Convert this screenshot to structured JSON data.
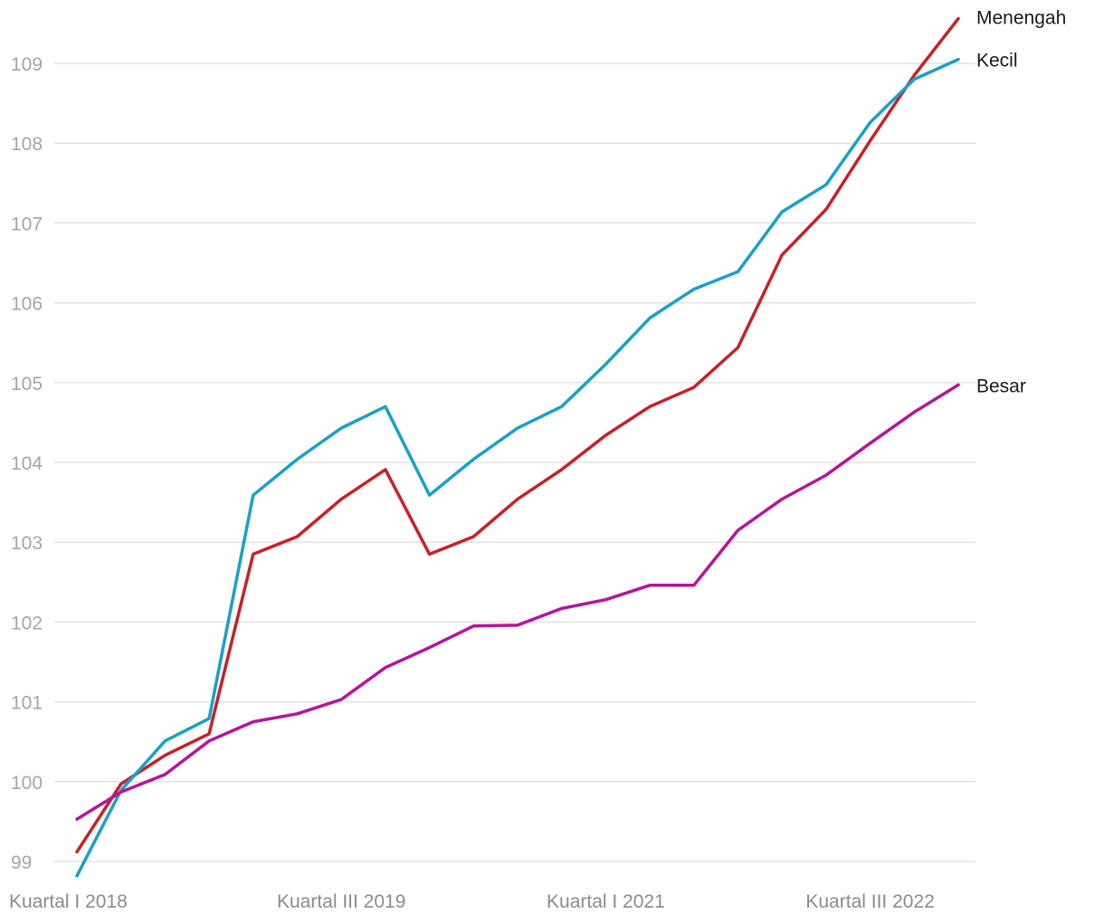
{
  "chart_data": {
    "type": "line",
    "title": "",
    "xlabel": "",
    "ylabel": "",
    "ylim": [
      98.8,
      109.6
    ],
    "yticks": [
      99,
      100,
      101,
      102,
      103,
      104,
      105,
      106,
      107,
      108,
      109
    ],
    "grid": true,
    "legend": "direct labels at line ends",
    "x": [
      "Kuartal I 2018",
      "Kuartal II 2018",
      "Kuartal III 2018",
      "Kuartal IV 2018",
      "Kuartal I 2019",
      "Kuartal II 2019",
      "Kuartal III 2019",
      "Kuartal IV 2019",
      "Kuartal I 2020",
      "Kuartal II 2020",
      "Kuartal III 2020",
      "Kuartal IV 2020",
      "Kuartal I 2021",
      "Kuartal II 2021",
      "Kuartal III 2021",
      "Kuartal IV 2021",
      "Kuartal I 2022",
      "Kuartal II 2022",
      "Kuartal III 2022",
      "Kuartal IV 2022",
      "Kuartal I 2023"
    ],
    "x_tick_labels": [
      "Kuartal I 2018",
      "Kuartal III 2019",
      "Kuartal I 2021",
      "Kuartal III 2022"
    ],
    "x_tick_indices": [
      0,
      6,
      12,
      18
    ],
    "series": [
      {
        "name": "Menengah",
        "color": "#c62127",
        "values": [
          99.12,
          99.97,
          100.33,
          100.6,
          102.85,
          103.07,
          103.54,
          103.91,
          102.85,
          103.07,
          103.54,
          103.91,
          104.34,
          104.7,
          104.94,
          105.44,
          106.6,
          107.17,
          108.03,
          108.85,
          109.56
        ]
      },
      {
        "name": "Kecil",
        "color": "#1aa0c8",
        "values": [
          98.82,
          99.89,
          100.51,
          100.79,
          103.59,
          104.04,
          104.43,
          104.7,
          103.59,
          104.04,
          104.43,
          104.7,
          105.23,
          105.81,
          106.17,
          106.39,
          107.14,
          107.48,
          108.26,
          108.8,
          109.05
        ]
      },
      {
        "name": "Besar",
        "color": "#b5159b",
        "values": [
          99.53,
          99.87,
          100.09,
          100.51,
          100.75,
          100.85,
          101.03,
          101.43,
          101.68,
          101.95,
          101.96,
          102.17,
          102.28,
          102.46,
          102.46,
          103.15,
          103.54,
          103.84,
          104.24,
          104.63,
          104.97
        ]
      }
    ]
  }
}
